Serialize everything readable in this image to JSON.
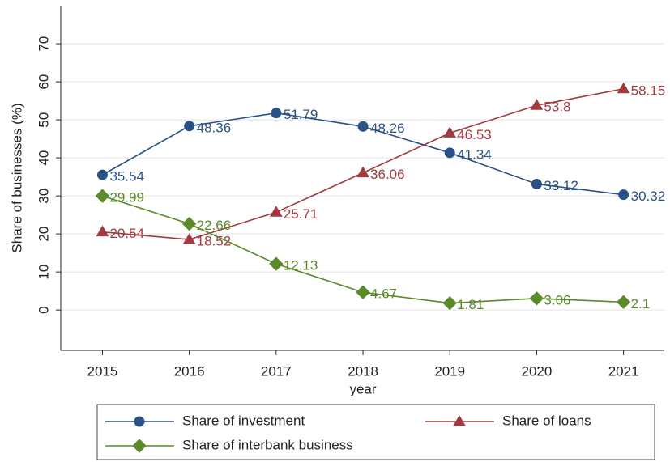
{
  "chart_data": {
    "type": "line",
    "x_label": "year",
    "y_label": "Share of businesses (%)",
    "x": [
      2015,
      2016,
      2017,
      2018,
      2019,
      2020,
      2021
    ],
    "xlim": [
      2014.52,
      2021.47
    ],
    "xticks": [
      2015,
      2016,
      2017,
      2018,
      2019,
      2020,
      2021
    ],
    "ylim": [
      -10.6,
      79.8
    ],
    "yticks": [
      0,
      10,
      20,
      30,
      40,
      50,
      60,
      70
    ],
    "grid": true,
    "series": [
      {
        "name": "Share of investment",
        "color": "#2a5285",
        "marker": "circle",
        "values": [
          35.54,
          48.36,
          51.79,
          48.26,
          41.34,
          33.12,
          30.32
        ]
      },
      {
        "name": "Share of loans",
        "color": "#a33a3f",
        "marker": "triangle",
        "values": [
          20.54,
          18.52,
          25.71,
          36.06,
          46.53,
          53.8,
          58.15
        ]
      },
      {
        "name": "Share of interbank business",
        "color": "#5a8a2a",
        "marker": "diamond",
        "values": [
          29.99,
          22.66,
          12.13,
          4.67,
          1.81,
          3.06,
          2.1
        ]
      }
    ]
  }
}
